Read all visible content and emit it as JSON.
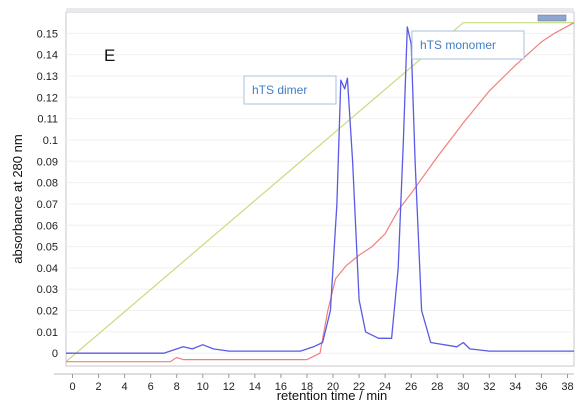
{
  "chart_data": {
    "type": "line",
    "panel_label": "E",
    "xlabel": "retention time / min",
    "ylabel": "absorbance at 280 nm",
    "xlim": [
      -0.5,
      38.5
    ],
    "ylim": [
      -0.006,
      0.16
    ],
    "x_ticks": [
      0,
      2,
      4,
      6,
      8,
      10,
      12,
      14,
      16,
      18,
      20,
      22,
      24,
      26,
      28,
      30,
      32,
      34,
      36,
      38
    ],
    "y_ticks": [
      0,
      0.01,
      0.02,
      0.03,
      0.04,
      0.05,
      0.06,
      0.07,
      0.08,
      0.09,
      0.1,
      0.11,
      0.12,
      0.13,
      0.14,
      0.15
    ],
    "colors": {
      "absorbance": "#5a5ae6",
      "conductivity": "#f08080",
      "gradient": "#c5dd7f",
      "annotation": "#3f7fc4"
    },
    "series": [
      {
        "values": [
          [
            -0.5,
            0
          ],
          [
            7,
            0
          ],
          [
            8.5,
            0.003
          ],
          [
            9.2,
            0.002
          ],
          [
            10,
            0.004
          ],
          [
            10.8,
            0.002
          ],
          [
            12,
            0.001
          ],
          [
            17.5,
            0.001
          ],
          [
            18.5,
            0.003
          ],
          [
            19.2,
            0.005
          ],
          [
            19.8,
            0.02
          ],
          [
            20.3,
            0.07
          ],
          [
            20.6,
            0.128
          ],
          [
            20.9,
            0.124
          ],
          [
            21.1,
            0.129
          ],
          [
            21.5,
            0.09
          ],
          [
            22,
            0.025
          ],
          [
            22.5,
            0.01
          ],
          [
            23.5,
            0.007
          ],
          [
            24.5,
            0.007
          ],
          [
            25.0,
            0.04
          ],
          [
            25.4,
            0.1
          ],
          [
            25.7,
            0.153
          ],
          [
            26.0,
            0.145
          ],
          [
            26.3,
            0.09
          ],
          [
            26.8,
            0.02
          ],
          [
            27.5,
            0.005
          ],
          [
            29.5,
            0.003
          ],
          [
            30.0,
            0.005
          ],
          [
            30.5,
            0.002
          ],
          [
            32,
            0.001
          ],
          [
            38.5,
            0.001
          ]
        ]
      },
      {
        "values": [
          [
            -0.5,
            -0.004
          ],
          [
            7.5,
            -0.004
          ],
          [
            8,
            -0.002
          ],
          [
            8.5,
            -0.003
          ],
          [
            9,
            -0.003
          ],
          [
            18,
            -0.003
          ],
          [
            19,
            0
          ],
          [
            19.6,
            0.02
          ],
          [
            20.2,
            0.035
          ],
          [
            21,
            0.041
          ],
          [
            22,
            0.046
          ],
          [
            23,
            0.05
          ],
          [
            24,
            0.056
          ],
          [
            25,
            0.067
          ],
          [
            26,
            0.075
          ],
          [
            28,
            0.092
          ],
          [
            30,
            0.108
          ],
          [
            32,
            0.123
          ],
          [
            34,
            0.135
          ],
          [
            36,
            0.146
          ],
          [
            37,
            0.15
          ],
          [
            38.5,
            0.155
          ]
        ]
      },
      {
        "values": [
          [
            -0.5,
            -0.004
          ],
          [
            30,
            0.155
          ],
          [
            38.5,
            0.155
          ]
        ]
      }
    ],
    "annotations": [
      {
        "text": "hTS dimer",
        "x": 20.9,
        "y": 0.129
      },
      {
        "text": "hTS monomer",
        "x": 25.7,
        "y": 0.153
      }
    ]
  }
}
